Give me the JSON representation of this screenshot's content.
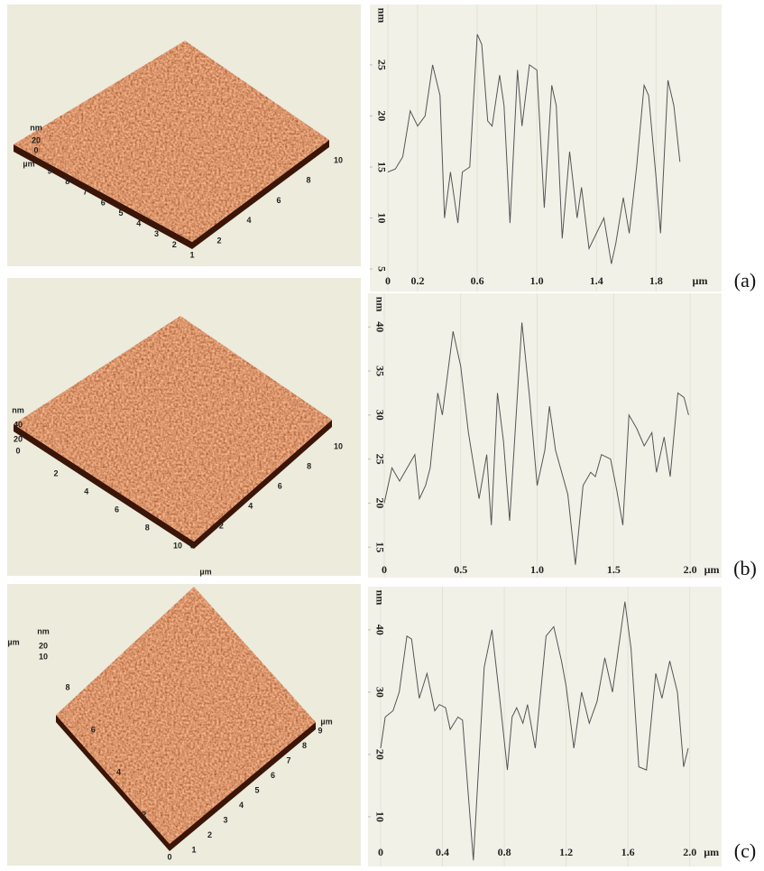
{
  "panel_labels": [
    "(a)",
    "(b)",
    "(c)"
  ],
  "surfaces": [
    {
      "z_unit": "nm",
      "z_ticks": [
        20,
        0
      ],
      "unit": "µm",
      "left_ticks": [
        9,
        8,
        7,
        6,
        5,
        4,
        3,
        2,
        1
      ],
      "right_ticks": [
        2,
        4,
        6,
        8,
        10
      ]
    },
    {
      "z_unit": "nm",
      "z_ticks": [
        40,
        20,
        0
      ],
      "left_ticks": [
        2,
        4,
        6,
        8,
        10
      ],
      "right_ticks": [
        0,
        2,
        4,
        6,
        8,
        10
      ],
      "unit": "µm"
    },
    {
      "unit": "µm",
      "z_unit": "nm",
      "z_ticks": [
        20,
        10
      ],
      "left_ticks": [
        8,
        6,
        4,
        2,
        0
      ],
      "right_ticks": [
        1,
        2,
        3,
        4,
        5,
        6,
        7,
        8,
        9
      ],
      "right_unit": "µm"
    }
  ],
  "chart_data": [
    {
      "type": "line",
      "x_label": "µm",
      "y_label": "nm",
      "color": "#555555",
      "grid": true,
      "xlim": [
        0,
        2.24
      ],
      "ylim": [
        5,
        30.3
      ],
      "xticks": [
        0,
        0.2,
        0.6,
        {
          "value": 1,
          "label": "1.0"
        },
        1.4,
        1.8
      ],
      "yticks": [
        5,
        10,
        15,
        20,
        25
      ],
      "x": [
        0,
        0.05,
        0.1,
        0.15,
        0.2,
        0.25,
        0.3,
        0.35,
        0.38,
        0.42,
        0.47,
        0.5,
        0.55,
        0.6,
        0.63,
        0.67,
        0.7,
        0.75,
        0.78,
        0.82,
        0.87,
        0.9,
        0.95,
        1.0,
        1.05,
        1.1,
        1.13,
        1.17,
        1.22,
        1.27,
        1.3,
        1.35,
        1.45,
        1.5,
        1.53,
        1.58,
        1.62,
        1.67,
        1.72,
        1.75,
        1.8,
        1.83,
        1.88,
        1.92,
        1.96
      ],
      "values": [
        14.5,
        14.8,
        16,
        20.5,
        19,
        20,
        25,
        22,
        10,
        14.5,
        9.5,
        14.5,
        15,
        28,
        27,
        19.5,
        19,
        24,
        21,
        9.5,
        24.5,
        19,
        25,
        24.5,
        11,
        23,
        21,
        8,
        16.5,
        10,
        13,
        7,
        10,
        5.5,
        7.5,
        12,
        8.5,
        15,
        23,
        22,
        14,
        8.5,
        23.5,
        21,
        15.5
      ]
    },
    {
      "type": "line",
      "x_label": "µm",
      "y_label": "nm",
      "color": "#555555",
      "grid": true,
      "xlim": [
        0,
        2.2
      ],
      "ylim": [
        14.1,
        43.3
      ],
      "xticks": [
        0,
        0.5,
        {
          "value": 1,
          "label": "1.0"
        },
        1.5,
        {
          "value": 2,
          "label": "2.0"
        }
      ],
      "yticks": [
        15,
        20,
        25,
        30,
        35,
        40
      ],
      "x": [
        0,
        0.05,
        0.1,
        0.2,
        0.23,
        0.27,
        0.3,
        0.35,
        0.38,
        0.45,
        0.5,
        0.55,
        0.62,
        0.67,
        0.7,
        0.74,
        0.78,
        0.82,
        0.9,
        0.95,
        1.0,
        1.05,
        1.08,
        1.12,
        1.2,
        1.25,
        1.3,
        1.35,
        1.38,
        1.42,
        1.48,
        1.52,
        1.56,
        1.6,
        1.65,
        1.7,
        1.75,
        1.78,
        1.83,
        1.87,
        1.92,
        1.96,
        1.99
      ],
      "values": [
        20,
        24,
        22.5,
        25.5,
        20.5,
        22,
        24,
        32.5,
        30,
        39.5,
        35.5,
        28,
        20.5,
        25.5,
        17.5,
        32.5,
        27,
        18,
        40.5,
        32,
        22,
        26,
        31,
        26,
        21,
        13,
        22,
        23.5,
        23,
        25.5,
        25,
        21.5,
        17.5,
        30,
        28.5,
        26.5,
        28,
        23.5,
        27.5,
        23,
        32.5,
        32,
        30
      ]
    },
    {
      "type": "line",
      "x_label": "µm",
      "y_label": "nm",
      "color": "#555555",
      "grid": true,
      "xlim": [
        0,
        2.2
      ],
      "ylim": [
        2.3,
        46.2
      ],
      "xticks": [
        0,
        0.4,
        0.8,
        1.2,
        1.6,
        {
          "value": 2,
          "label": "2.0"
        }
      ],
      "yticks": [
        10,
        20,
        30,
        40
      ],
      "x": [
        0,
        0.03,
        0.08,
        0.12,
        0.17,
        0.2,
        0.25,
        0.3,
        0.35,
        0.38,
        0.42,
        0.45,
        0.5,
        0.53,
        0.6,
        0.67,
        0.72,
        0.77,
        0.82,
        0.85,
        0.88,
        0.92,
        0.95,
        1.0,
        1.07,
        1.12,
        1.17,
        1.2,
        1.25,
        1.3,
        1.35,
        1.4,
        1.45,
        1.5,
        1.58,
        1.62,
        1.67,
        1.72,
        1.78,
        1.82,
        1.87,
        1.92,
        1.96,
        1.99
      ],
      "values": [
        21,
        26,
        27,
        30,
        39,
        38.5,
        29,
        33,
        27,
        28,
        27.5,
        24,
        26,
        25.5,
        3,
        34,
        40,
        29,
        17.5,
        26,
        27.5,
        25,
        28,
        21,
        39,
        40.5,
        35,
        31,
        21,
        30,
        25,
        28.5,
        35.5,
        30,
        44.5,
        37,
        18,
        17.5,
        33,
        29,
        35,
        30,
        18,
        21
      ]
    }
  ]
}
